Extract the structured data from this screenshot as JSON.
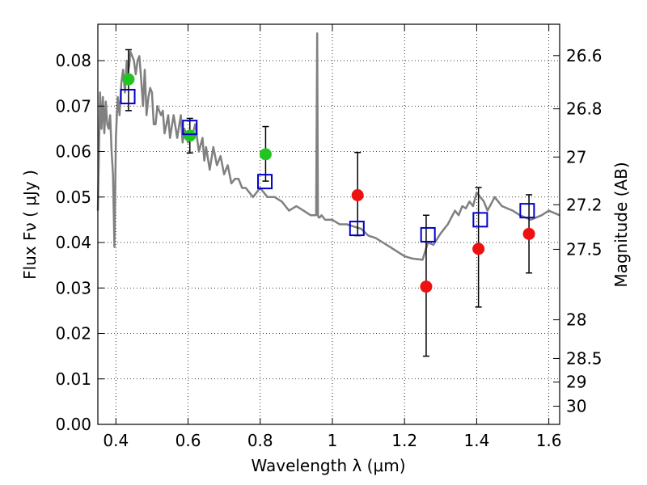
{
  "chart_data": {
    "type": "scatter",
    "xlabel": "Wavelength  λ (μm)",
    "ylabel_left": "Flux  Fν  ( μJy )",
    "ylabel_right": "Magnitude (AB)",
    "xlim": [
      0.35,
      1.63
    ],
    "ylim": [
      0.0,
      0.088
    ],
    "grid": true,
    "x_ticks": [
      {
        "value": 0.4,
        "label": "0.4"
      },
      {
        "value": 0.6,
        "label": "0.6"
      },
      {
        "value": 0.8,
        "label": "0.8"
      },
      {
        "value": 1.0,
        "label": "1"
      },
      {
        "value": 1.2,
        "label": "1.2"
      },
      {
        "value": 1.4,
        "label": "1.4"
      },
      {
        "value": 1.6,
        "label": "1.6"
      }
    ],
    "y_ticks": [
      {
        "value": 0.0,
        "label": "0.00"
      },
      {
        "value": 0.01,
        "label": "0.01"
      },
      {
        "value": 0.02,
        "label": "0.02"
      },
      {
        "value": 0.03,
        "label": "0.03"
      },
      {
        "value": 0.04,
        "label": "0.04"
      },
      {
        "value": 0.05,
        "label": "0.05"
      },
      {
        "value": 0.06,
        "label": "0.06"
      },
      {
        "value": 0.07,
        "label": "0.07"
      },
      {
        "value": 0.08,
        "label": "0.08"
      }
    ],
    "right_ticks": [
      {
        "flux": 0.0811,
        "label": "26.6"
      },
      {
        "flux": 0.0694,
        "label": "26.8"
      },
      {
        "flux": 0.0588,
        "label": "27"
      },
      {
        "flux": 0.0483,
        "label": "27.2"
      },
      {
        "flux": 0.0385,
        "label": "27.5"
      },
      {
        "flux": 0.023,
        "label": "28"
      },
      {
        "flux": 0.0145,
        "label": "28.5"
      },
      {
        "flux": 0.0093,
        "label": "29"
      },
      {
        "flux": 0.004,
        "label": "30"
      }
    ],
    "series": [
      {
        "name": "template-spectrum",
        "kind": "line",
        "color": "#808080",
        "x": [
          0.35,
          0.356,
          0.36,
          0.364,
          0.368,
          0.372,
          0.376,
          0.38,
          0.384,
          0.388,
          0.392,
          0.396,
          0.4,
          0.405,
          0.41,
          0.415,
          0.42,
          0.425,
          0.43,
          0.433,
          0.437,
          0.44,
          0.445,
          0.45,
          0.455,
          0.46,
          0.465,
          0.47,
          0.475,
          0.48,
          0.485,
          0.49,
          0.495,
          0.5,
          0.505,
          0.51,
          0.515,
          0.52,
          0.525,
          0.53,
          0.535,
          0.54,
          0.545,
          0.55,
          0.56,
          0.57,
          0.58,
          0.585,
          0.59,
          0.6,
          0.61,
          0.62,
          0.63,
          0.64,
          0.645,
          0.65,
          0.66,
          0.67,
          0.68,
          0.69,
          0.7,
          0.71,
          0.72,
          0.73,
          0.74,
          0.75,
          0.76,
          0.78,
          0.8,
          0.82,
          0.84,
          0.86,
          0.88,
          0.9,
          0.92,
          0.94,
          0.955,
          0.958,
          0.96,
          0.962,
          0.965,
          0.97,
          0.98,
          1.0,
          1.02,
          1.04,
          1.06,
          1.08,
          1.1,
          1.12,
          1.14,
          1.16,
          1.18,
          1.2,
          1.22,
          1.25,
          1.265,
          1.28,
          1.3,
          1.32,
          1.34,
          1.35,
          1.36,
          1.37,
          1.38,
          1.39,
          1.4,
          1.41,
          1.42,
          1.43,
          1.45,
          1.47,
          1.5,
          1.52,
          1.55,
          1.58,
          1.6,
          1.63
        ],
        "y": [
          0.047,
          0.073,
          0.065,
          0.072,
          0.064,
          0.071,
          0.066,
          0.065,
          0.068,
          0.06,
          0.055,
          0.039,
          0.063,
          0.072,
          0.068,
          0.075,
          0.078,
          0.073,
          0.08,
          0.077,
          0.079,
          0.082,
          0.081,
          0.08,
          0.077,
          0.08,
          0.081,
          0.076,
          0.07,
          0.078,
          0.068,
          0.072,
          0.074,
          0.073,
          0.066,
          0.066,
          0.07,
          0.069,
          0.068,
          0.069,
          0.064,
          0.066,
          0.068,
          0.063,
          0.068,
          0.063,
          0.068,
          0.062,
          0.065,
          0.062,
          0.063,
          0.066,
          0.06,
          0.063,
          0.058,
          0.061,
          0.056,
          0.061,
          0.057,
          0.059,
          0.055,
          0.057,
          0.053,
          0.054,
          0.054,
          0.052,
          0.052,
          0.05,
          0.052,
          0.05,
          0.05,
          0.049,
          0.047,
          0.048,
          0.047,
          0.046,
          0.046,
          0.086,
          0.046,
          0.0455,
          0.0455,
          0.046,
          0.045,
          0.045,
          0.044,
          0.044,
          0.0435,
          0.043,
          0.0415,
          0.041,
          0.04,
          0.039,
          0.038,
          0.037,
          0.0365,
          0.0362,
          0.04,
          0.0395,
          0.042,
          0.044,
          0.047,
          0.046,
          0.048,
          0.0475,
          0.049,
          0.048,
          0.051,
          0.05,
          0.049,
          0.047,
          0.05,
          0.048,
          0.047,
          0.046,
          0.045,
          0.046,
          0.047,
          0.046
        ]
      },
      {
        "name": "observed-green",
        "kind": "points",
        "color": "#22c422",
        "x": [
          0.435,
          0.605,
          0.815
        ],
        "y": [
          0.0759,
          0.0635,
          0.0594
        ],
        "err_lo": [
          0.0069,
          0.0038,
          0.0059
        ],
        "err_hi": [
          0.0065,
          0.0038,
          0.0061
        ]
      },
      {
        "name": "observed-red",
        "kind": "points",
        "color": "#ee1111",
        "x": [
          1.07,
          1.26,
          1.405,
          1.545
        ],
        "y": [
          0.0504,
          0.0303,
          0.0386,
          0.0419
        ],
        "err_lo": [
          0.0089,
          0.0153,
          0.0128,
          0.0086
        ],
        "err_hi": [
          0.0094,
          0.0157,
          0.0135,
          0.0086
        ]
      },
      {
        "name": "model-blue",
        "kind": "squares",
        "color": "#0000cc",
        "x": [
          0.433,
          0.605,
          0.813,
          1.068,
          1.265,
          1.41,
          1.54
        ],
        "y": [
          0.0721,
          0.0653,
          0.0534,
          0.0431,
          0.0417,
          0.045,
          0.047
        ]
      }
    ]
  }
}
